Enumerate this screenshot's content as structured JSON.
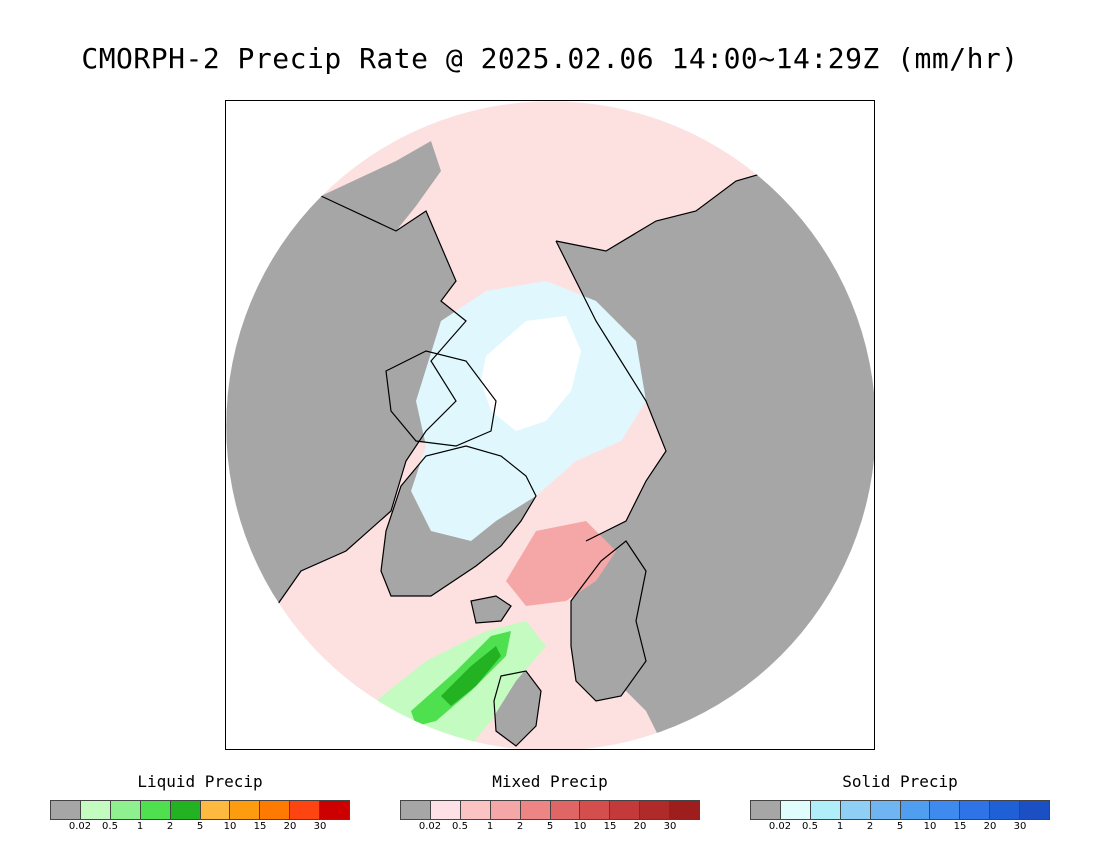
{
  "title": "CMORPH-2 Precip Rate @ 2025.02.06 14:00~14:29Z (mm/hr)",
  "map": {
    "projection": "north-polar-stereographic",
    "colors": {
      "land_no_precip": "#a6a6a6",
      "ocean_mixed_light": "#fde1e1",
      "solid_light": "#e0f8fd",
      "pole": "#ffffff",
      "liquid_light": "#c3fbc0",
      "liquid_mid": "#4fe04f",
      "liquid_dark": "#22b222",
      "mixed_mid": "#f5a6a6",
      "coast": "#000000"
    }
  },
  "legends": [
    {
      "title": "Liquid Precip",
      "colors": [
        "#a6a6a6",
        "#c3fbc0",
        "#8ff08f",
        "#4fe04f",
        "#22b222",
        "#fdb940",
        "#fe9c10",
        "#fe7a00",
        "#fe4410",
        "#cc0000"
      ],
      "ticks": [
        "0.02",
        "0.5",
        "1",
        "2",
        "5",
        "10",
        "15",
        "20",
        "30"
      ]
    },
    {
      "title": "Mixed Precip",
      "colors": [
        "#a6a6a6",
        "#fde1e6",
        "#fcc3c3",
        "#f5a6a6",
        "#ed8585",
        "#e06666",
        "#d44e4e",
        "#c43a3a",
        "#b02a2a",
        "#9e1e1e"
      ],
      "ticks": [
        "0.02",
        "0.5",
        "1",
        "2",
        "5",
        "10",
        "15",
        "20",
        "30"
      ]
    },
    {
      "title": "Solid Precip",
      "colors": [
        "#a6a6a6",
        "#e0fdfd",
        "#b0eefa",
        "#8fcff5",
        "#6fb5f2",
        "#4f9ef0",
        "#3e8aee",
        "#2e74e6",
        "#1f60d6",
        "#1a50c4"
      ],
      "ticks": [
        "0.02",
        "0.5",
        "1",
        "2",
        "5",
        "10",
        "15",
        "20",
        "30"
      ]
    }
  ]
}
